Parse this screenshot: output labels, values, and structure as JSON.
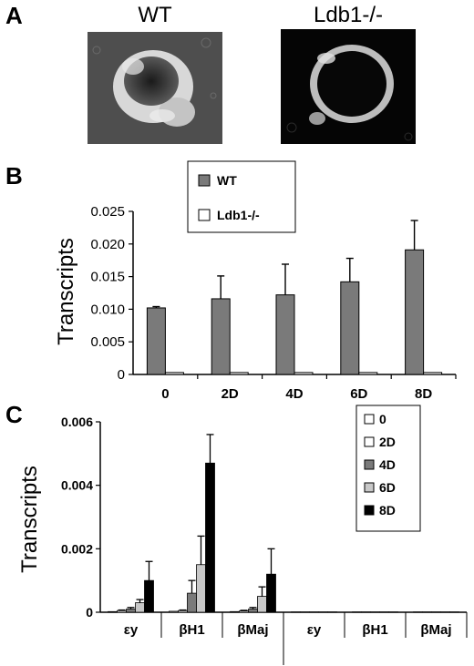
{
  "panel_a": {
    "letter": "A",
    "images": [
      {
        "label": "WT"
      },
      {
        "label": "Ldb1-/-"
      }
    ]
  },
  "panel_b": {
    "letter": "B",
    "ylabel": "Transcripts",
    "legend": [
      "WT",
      "Ldb1-/-"
    ],
    "colors": {
      "WT": "#7a7a7a",
      "Ldb1-/-": "#ffffff"
    },
    "y_ticks": [
      "0",
      "0.005",
      "0.010",
      "0.015",
      "0.020",
      "0.025"
    ]
  },
  "panel_c": {
    "letter": "C",
    "ylabel": "Transcripts",
    "legend": [
      "0",
      "2D",
      "4D",
      "6D",
      "8D"
    ],
    "colors": {
      "0": "#ffffff",
      "2D": "#ffffff",
      "4D": "#7a7a7a",
      "6D": "#c8c8c8",
      "8D": "#000000"
    },
    "y_ticks": [
      "0",
      "0.002",
      "0.004",
      "0.006"
    ]
  },
  "chart_data": [
    {
      "type": "bar",
      "categories": [
        "0",
        "2D",
        "4D",
        "6D",
        "8D"
      ],
      "ylabel": "Transcripts",
      "ylim": [
        0,
        0.025
      ],
      "series": [
        {
          "name": "WT",
          "values": [
            0.0102,
            0.0116,
            0.0122,
            0.0142,
            0.0191
          ],
          "errors": [
            0.0002,
            0.0035,
            0.0047,
            0.0036,
            0.0045
          ]
        },
        {
          "name": "Ldb1-/-",
          "values": [
            0.0003,
            0.0003,
            0.0003,
            0.0003,
            0.0003
          ],
          "errors": [
            0,
            0,
            0,
            0,
            0
          ]
        }
      ],
      "legend": "top-center",
      "grid": false
    },
    {
      "type": "bar",
      "categories": [
        "εy",
        "βH1",
        "βMaj",
        "εy",
        "βH1",
        "βMaj"
      ],
      "ylabel": "Transcripts",
      "ylim": [
        0,
        0.006
      ],
      "series": [
        {
          "name": "0",
          "values": [
            2e-05,
            3e-05,
            2e-05,
            1e-05,
            1e-05,
            1e-05
          ],
          "errors": [
            0,
            0,
            0,
            0,
            0,
            0
          ]
        },
        {
          "name": "2D",
          "values": [
            5e-05,
            5e-05,
            4e-05,
            1e-05,
            1e-05,
            1e-05
          ],
          "errors": [
            2e-05,
            2e-05,
            2e-05,
            0,
            0,
            0
          ]
        },
        {
          "name": "4D",
          "values": [
            0.0001,
            0.0006,
            0.0001,
            1e-05,
            1e-05,
            1e-05
          ],
          "errors": [
            5e-05,
            0.0004,
            5e-05,
            0,
            0,
            0
          ]
        },
        {
          "name": "6D",
          "values": [
            0.0003,
            0.0015,
            0.0005,
            1e-05,
            1e-05,
            1e-05
          ],
          "errors": [
            0.0001,
            0.0009,
            0.0003,
            0,
            0,
            0
          ]
        },
        {
          "name": "8D",
          "values": [
            0.001,
            0.0047,
            0.0012,
            1e-05,
            1e-05,
            1e-05
          ],
          "errors": [
            0.0006,
            0.0009,
            0.0008,
            0,
            0,
            0
          ]
        }
      ],
      "legend": "top-right",
      "grid": false
    }
  ]
}
